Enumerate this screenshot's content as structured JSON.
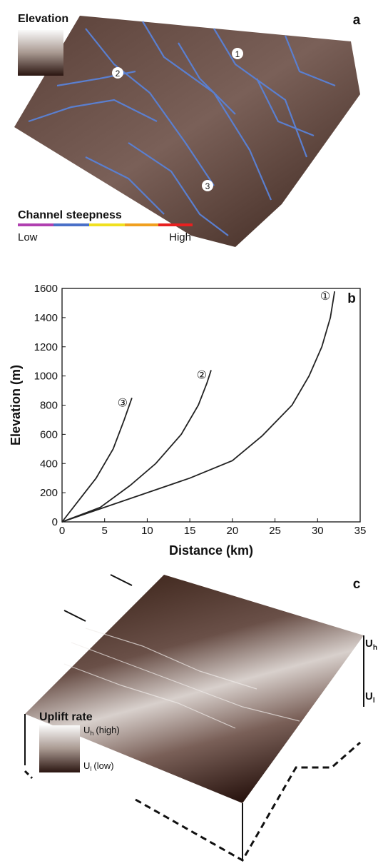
{
  "panel_a": {
    "label": "a",
    "elevation_legend": "Elevation",
    "steepness_legend": "Channel steepness",
    "low": "Low",
    "high": "High",
    "markers": [
      "1",
      "2",
      "3"
    ]
  },
  "chart_data": {
    "type": "line",
    "panel_label": "b",
    "x_label": "Distance (km)",
    "y_label": "Elevation (m)",
    "xlim": [
      0,
      35
    ],
    "ylim": [
      0,
      1600
    ],
    "xticks": [
      0,
      5,
      10,
      15,
      20,
      25,
      30,
      35
    ],
    "yticks": [
      0,
      200,
      400,
      600,
      800,
      1000,
      1200,
      1400,
      1600
    ],
    "grid": false,
    "series": [
      {
        "name": "①",
        "color": "#222222",
        "x": [
          0,
          4,
          10,
          15,
          20,
          23.5,
          27,
          29,
          30.5,
          31.5,
          32
        ],
        "values": [
          0,
          80,
          200,
          300,
          420,
          590,
          800,
          1000,
          1200,
          1400,
          1580
        ]
      },
      {
        "name": "②",
        "color": "#222222",
        "x": [
          0,
          4.5,
          8,
          11,
          14,
          16,
          17,
          17.5
        ],
        "values": [
          0,
          100,
          250,
          400,
          600,
          800,
          950,
          1040
        ]
      },
      {
        "name": "③",
        "color": "#222222",
        "x": [
          0,
          2,
          4,
          6,
          7.3,
          8.2
        ],
        "values": [
          0,
          150,
          300,
          500,
          700,
          850
        ]
      }
    ]
  },
  "panel_c": {
    "label": "c",
    "legend_title": "Uplift rate",
    "high": {
      "symbol": "U",
      "subscript": "h",
      "text": "(high)"
    },
    "low": {
      "symbol": "U",
      "subscript": "l",
      "text": "(low)"
    },
    "edge_high": {
      "symbol": "U",
      "subscript": "h"
    },
    "edge_low": {
      "symbol": "U",
      "subscript": "l"
    }
  }
}
